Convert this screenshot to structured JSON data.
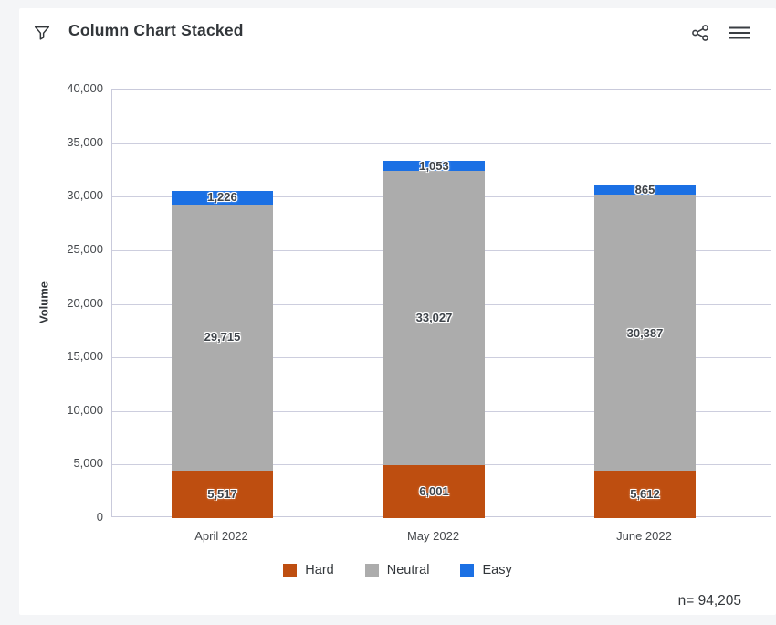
{
  "header": {
    "title": "Column Chart Stacked",
    "icons": [
      "filter-icon",
      "share-icon",
      "menu-icon"
    ]
  },
  "chart_data": {
    "type": "bar",
    "stacked": true,
    "title": "Column Chart Stacked",
    "ylabel": "Volume",
    "ylim": [
      0,
      40000
    ],
    "ytick_step": 5000,
    "yticks": [
      "0",
      "5,000",
      "10,000",
      "15,000",
      "20,000",
      "25,000",
      "30,000",
      "35,000",
      "40,000"
    ],
    "categories": [
      "April 2022",
      "May 2022",
      "June 2022"
    ],
    "series": [
      {
        "name": "Hard",
        "color": "#be4e10",
        "values": [
          5517,
          6001,
          5612
        ],
        "labels": [
          "5,517",
          "6,001",
          "5,612"
        ],
        "plotted_approx": [
          4450,
          4970,
          4370
        ]
      },
      {
        "name": "Neutral",
        "color": "#acacac",
        "values": [
          29715,
          33027,
          30387
        ],
        "labels": [
          "29,715",
          "33,027",
          "30,387"
        ],
        "plotted_approx": [
          24840,
          27410,
          25780
        ]
      },
      {
        "name": "Easy",
        "color": "#1b70e4",
        "values": [
          1226,
          1053,
          865
        ],
        "labels": [
          "1,226",
          "1,053",
          "865"
        ],
        "plotted_approx": [
          1285,
          940,
          940
        ]
      }
    ],
    "legend": [
      "Hard",
      "Neutral",
      "Easy"
    ],
    "legend_position": "bottom",
    "grid": true,
    "n_total": "n= 94,205"
  },
  "footer": {
    "n_total": "n= 94,205"
  }
}
